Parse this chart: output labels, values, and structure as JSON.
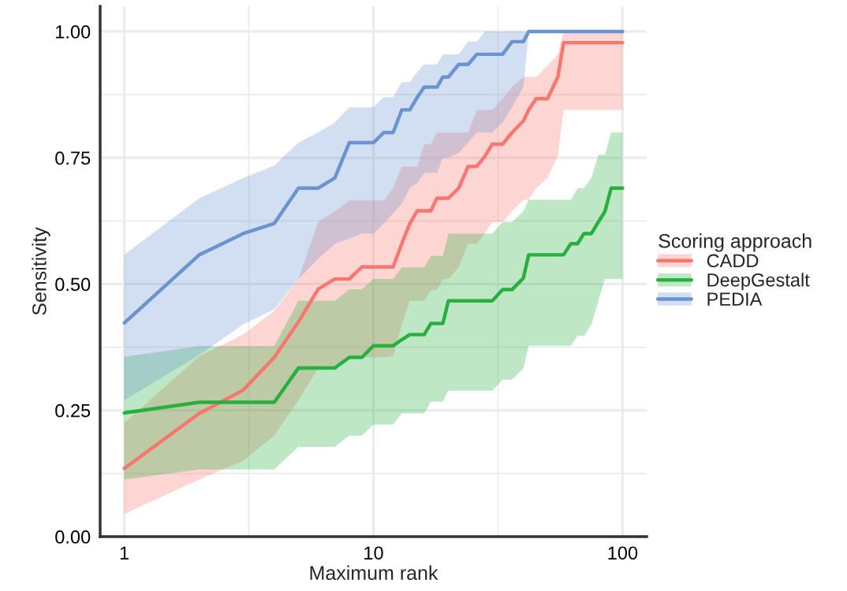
{
  "chart_data": {
    "type": "line",
    "xlabel": "Maximum rank",
    "ylabel": "Sensitivity",
    "legend_title": "Scoring approach",
    "legend": "right",
    "log": "x",
    "grid": true,
    "x": [
      1,
      2,
      3,
      4,
      5,
      6,
      7,
      8,
      9,
      10,
      11,
      12,
      13,
      14,
      15,
      16,
      17,
      18,
      19,
      20,
      22,
      24,
      26,
      28,
      30,
      33,
      36,
      40,
      42,
      45,
      50,
      55,
      58,
      62,
      66,
      70,
      75,
      80,
      85,
      90,
      100
    ],
    "xlim": [
      0.8,
      125
    ],
    "xticks": [
      1,
      10,
      100
    ],
    "ylim": [
      0,
      1.05
    ],
    "yticks": [
      {
        "value": 0,
        "label": "0.00"
      },
      {
        "value": 0.25,
        "label": "0.25"
      },
      {
        "value": 0.5,
        "label": "0.50"
      },
      {
        "value": 0.75,
        "label": "0.75"
      },
      {
        "value": 1,
        "label": "1.00"
      }
    ],
    "series": [
      {
        "name": "CADD",
        "color": "#f8766d",
        "values": [
          0.135,
          0.244,
          0.29,
          0.355,
          0.425,
          0.49,
          0.51,
          0.51,
          0.534,
          0.534,
          0.534,
          0.534,
          0.58,
          0.62,
          0.645,
          0.645,
          0.645,
          0.67,
          0.67,
          0.67,
          0.69,
          0.733,
          0.733,
          0.753,
          0.777,
          0.777,
          0.8,
          0.823,
          0.845,
          0.867,
          0.867,
          0.91,
          0.978,
          0.978,
          0.978,
          0.978,
          0.978,
          0.978,
          0.978,
          0.978,
          0.978
        ],
        "upper": [
          0.225,
          0.357,
          0.4,
          0.447,
          0.51,
          0.623,
          0.644,
          0.666,
          0.666,
          0.666,
          0.666,
          0.69,
          0.733,
          0.733,
          0.733,
          0.777,
          0.777,
          0.8,
          0.8,
          0.8,
          0.8,
          0.8,
          0.845,
          0.845,
          0.845,
          0.867,
          0.89,
          0.91,
          0.91,
          0.91,
          0.933,
          0.955,
          1,
          1,
          1,
          1,
          1,
          1,
          1,
          1,
          1
        ],
        "lower": [
          0.045,
          0.113,
          0.15,
          0.2,
          0.27,
          0.334,
          0.334,
          0.355,
          0.355,
          0.355,
          0.355,
          0.357,
          0.42,
          0.467,
          0.467,
          0.467,
          0.488,
          0.488,
          0.51,
          0.51,
          0.533,
          0.58,
          0.58,
          0.6,
          0.623,
          0.623,
          0.644,
          0.667,
          0.667,
          0.69,
          0.71,
          0.753,
          0.845,
          0.845,
          0.845,
          0.845,
          0.845,
          0.845,
          0.845,
          0.845,
          0.845
        ]
      },
      {
        "name": "DeepGestalt",
        "color": "#28b03f",
        "values": [
          0.245,
          0.266,
          0.266,
          0.266,
          0.334,
          0.334,
          0.334,
          0.355,
          0.355,
          0.378,
          0.378,
          0.378,
          0.39,
          0.4,
          0.4,
          0.4,
          0.422,
          0.422,
          0.422,
          0.467,
          0.467,
          0.467,
          0.467,
          0.467,
          0.467,
          0.489,
          0.489,
          0.512,
          0.558,
          0.558,
          0.558,
          0.558,
          0.558,
          0.58,
          0.58,
          0.6,
          0.6,
          0.623,
          0.644,
          0.69,
          0.69
        ],
        "upper": [
          0.356,
          0.377,
          0.377,
          0.377,
          0.467,
          0.467,
          0.467,
          0.49,
          0.49,
          0.51,
          0.51,
          0.51,
          0.533,
          0.533,
          0.533,
          0.533,
          0.556,
          0.556,
          0.556,
          0.6,
          0.6,
          0.6,
          0.6,
          0.6,
          0.6,
          0.623,
          0.623,
          0.644,
          0.667,
          0.667,
          0.667,
          0.667,
          0.667,
          0.667,
          0.69,
          0.69,
          0.711,
          0.756,
          0.756,
          0.8,
          0.8
        ],
        "lower": [
          0.113,
          0.133,
          0.133,
          0.133,
          0.178,
          0.178,
          0.178,
          0.2,
          0.2,
          0.222,
          0.222,
          0.222,
          0.244,
          0.244,
          0.244,
          0.244,
          0.267,
          0.267,
          0.267,
          0.289,
          0.289,
          0.289,
          0.289,
          0.289,
          0.289,
          0.311,
          0.311,
          0.333,
          0.378,
          0.378,
          0.378,
          0.378,
          0.378,
          0.378,
          0.398,
          0.398,
          0.42,
          0.467,
          0.51,
          0.51,
          0.51
        ]
      },
      {
        "name": "PEDIA",
        "color": "#6b93cf",
        "values": [
          0.423,
          0.558,
          0.6,
          0.62,
          0.69,
          0.69,
          0.71,
          0.78,
          0.78,
          0.78,
          0.8,
          0.8,
          0.845,
          0.845,
          0.87,
          0.89,
          0.89,
          0.89,
          0.91,
          0.91,
          0.935,
          0.935,
          0.955,
          0.955,
          0.955,
          0.955,
          0.98,
          0.98,
          1,
          1,
          1,
          1,
          1,
          1,
          1,
          1,
          1,
          1,
          1,
          1,
          1
        ],
        "upper": [
          0.558,
          0.67,
          0.71,
          0.735,
          0.78,
          0.8,
          0.82,
          0.85,
          0.85,
          0.85,
          0.87,
          0.87,
          0.9,
          0.9,
          0.92,
          0.935,
          0.935,
          0.935,
          0.955,
          0.955,
          0.955,
          0.98,
          0.98,
          1,
          1,
          1,
          1,
          1,
          1,
          1,
          1,
          1,
          1,
          1,
          1,
          1,
          1,
          1,
          1,
          1,
          1
        ],
        "lower": [
          0.27,
          0.36,
          0.42,
          0.45,
          0.51,
          0.55,
          0.58,
          0.59,
          0.6,
          0.6,
          0.62,
          0.64,
          0.66,
          0.69,
          0.7,
          0.72,
          0.72,
          0.72,
          0.75,
          0.75,
          0.76,
          0.78,
          0.8,
          0.8,
          0.8,
          0.82,
          0.85,
          0.89,
          1,
          1,
          1,
          1,
          1,
          1,
          1,
          1,
          1,
          1,
          1,
          1,
          1
        ]
      }
    ]
  }
}
